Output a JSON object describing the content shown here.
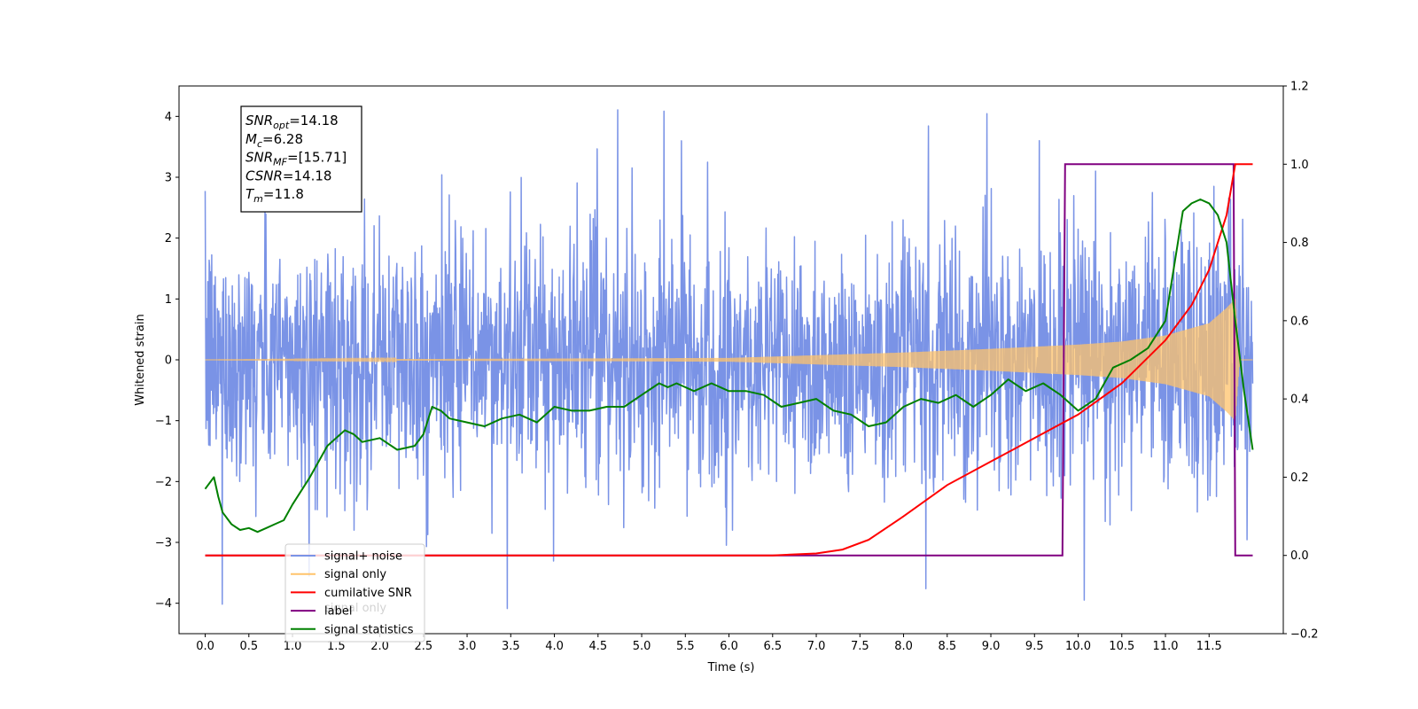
{
  "chart_data": {
    "type": "line",
    "xlabel": "Time (s)",
    "ylabel": "Whitened strain",
    "xlim": [
      -0.3,
      12.35
    ],
    "ylim": [
      -4.5,
      4.5
    ],
    "y2lim": [
      -0.2,
      1.2
    ],
    "x_ticks": [
      "0.0",
      "0.5",
      "1.0",
      "1.5",
      "2.0",
      "2.5",
      "3.0",
      "3.5",
      "4.0",
      "4.5",
      "5.0",
      "5.5",
      "6.0",
      "6.5",
      "7.0",
      "7.5",
      "8.0",
      "8.5",
      "9.0",
      "9.5",
      "10.0",
      "10.5",
      "11.0",
      "11.5"
    ],
    "y_ticks": [
      "4",
      "3",
      "2",
      "1",
      "0",
      "−1",
      "−2",
      "−3",
      "−4"
    ],
    "y2_ticks": [
      "1.2",
      "1.0",
      "0.8",
      "0.6",
      "0.4",
      "0.2",
      "0.0",
      "−0.2"
    ],
    "legend_position": "lower left",
    "legend": [
      "signal+ noise",
      "signal only",
      "cumilative SNR",
      "label",
      "signal statistics"
    ],
    "hidden_legend_text": "signal only",
    "annotation": {
      "lines": [
        {
          "base": "SNR",
          "sub": "opt",
          "value": "=14.18"
        },
        {
          "base": "M",
          "sub": "c",
          "value": "=6.28"
        },
        {
          "base": "SNR",
          "sub": "MF",
          "value": "=[15.71]"
        },
        {
          "base": "CSNR",
          "sub": "",
          "value": "=14.18"
        },
        {
          "base": "T",
          "sub": "m",
          "value": "=11.8"
        }
      ]
    },
    "series": [
      {
        "name": "signal+ noise",
        "axis": "left",
        "color": "#7a93e6",
        "x_range": [
          0.0,
          12.0
        ],
        "noise_std": 1.0,
        "peaks_max": [
          4.1,
          -4.1
        ]
      },
      {
        "name": "signal only",
        "axis": "left",
        "color": "#ffc36b",
        "x_range": [
          0.0,
          12.0
        ],
        "envelope": [
          [
            0.0,
            0.0
          ],
          [
            6.0,
            0.03
          ],
          [
            8.0,
            0.12
          ],
          [
            9.0,
            0.18
          ],
          [
            10.0,
            0.25
          ],
          [
            10.5,
            0.3
          ],
          [
            11.0,
            0.4
          ],
          [
            11.5,
            0.6
          ],
          [
            11.7,
            0.85
          ],
          [
            11.8,
            1.0
          ],
          [
            11.85,
            0.0
          ],
          [
            12.0,
            0.0
          ]
        ]
      },
      {
        "name": "cumilative SNR",
        "axis": "right",
        "color": "#ff0000",
        "x": [
          0.0,
          6.5,
          7.0,
          7.3,
          7.6,
          8.0,
          8.5,
          9.0,
          9.5,
          10.0,
          10.5,
          11.0,
          11.3,
          11.5,
          11.7,
          11.8,
          12.0
        ],
        "y": [
          0.0,
          0.0,
          0.005,
          0.015,
          0.04,
          0.1,
          0.18,
          0.24,
          0.3,
          0.36,
          0.44,
          0.55,
          0.64,
          0.73,
          0.87,
          1.0,
          1.0
        ]
      },
      {
        "name": "label",
        "axis": "right",
        "color": "#800080",
        "x": [
          0.0,
          9.82,
          9.85,
          11.78,
          11.8,
          12.0
        ],
        "y": [
          0.0,
          0.0,
          1.0,
          1.0,
          0.0,
          0.0
        ]
      },
      {
        "name": "signal statistics",
        "axis": "right",
        "color": "#008000",
        "x": [
          0.0,
          0.1,
          0.15,
          0.2,
          0.3,
          0.4,
          0.5,
          0.6,
          0.7,
          0.8,
          0.9,
          1.0,
          1.2,
          1.4,
          1.6,
          1.7,
          1.8,
          2.0,
          2.2,
          2.4,
          2.5,
          2.6,
          2.7,
          2.8,
          3.0,
          3.2,
          3.4,
          3.6,
          3.8,
          4.0,
          4.2,
          4.4,
          4.6,
          4.8,
          5.0,
          5.2,
          5.3,
          5.4,
          5.6,
          5.8,
          6.0,
          6.2,
          6.4,
          6.6,
          6.8,
          7.0,
          7.2,
          7.4,
          7.6,
          7.8,
          8.0,
          8.2,
          8.4,
          8.6,
          8.8,
          9.0,
          9.2,
          9.4,
          9.6,
          9.8,
          10.0,
          10.2,
          10.4,
          10.6,
          10.8,
          11.0,
          11.2,
          11.3,
          11.4,
          11.5,
          11.6,
          11.7,
          11.8,
          11.9,
          12.0
        ],
        "y": [
          0.17,
          0.2,
          0.15,
          0.11,
          0.08,
          0.065,
          0.07,
          0.06,
          0.07,
          0.08,
          0.09,
          0.13,
          0.2,
          0.28,
          0.32,
          0.31,
          0.29,
          0.3,
          0.27,
          0.28,
          0.31,
          0.38,
          0.37,
          0.35,
          0.34,
          0.33,
          0.35,
          0.36,
          0.34,
          0.38,
          0.37,
          0.37,
          0.38,
          0.38,
          0.41,
          0.44,
          0.43,
          0.44,
          0.42,
          0.44,
          0.42,
          0.42,
          0.41,
          0.38,
          0.39,
          0.4,
          0.37,
          0.36,
          0.33,
          0.34,
          0.38,
          0.4,
          0.39,
          0.41,
          0.38,
          0.41,
          0.45,
          0.42,
          0.44,
          0.41,
          0.37,
          0.4,
          0.48,
          0.5,
          0.53,
          0.6,
          0.88,
          0.9,
          0.91,
          0.9,
          0.87,
          0.8,
          0.6,
          0.42,
          0.27
        ]
      }
    ]
  }
}
